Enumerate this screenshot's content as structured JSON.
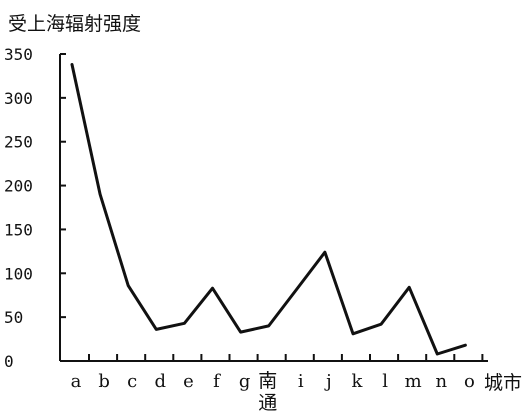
{
  "chart_data": {
    "type": "line",
    "title": "",
    "ylabel": "受上海辐射强度",
    "xlabel": "城市",
    "ylim": [
      0,
      350
    ],
    "yticks": [
      0,
      50,
      100,
      150,
      200,
      250,
      300,
      350
    ],
    "grid": false,
    "legend": "none",
    "categories": [
      "a",
      "b",
      "c",
      "d",
      "e",
      "f",
      "g",
      "南通",
      "i",
      "j",
      "k",
      "l",
      "m",
      "n",
      "o"
    ],
    "series": [
      {
        "values": [
          338,
          190,
          86,
          36,
          43,
          83,
          33,
          40,
          82,
          124,
          31,
          42,
          84,
          8,
          18
        ]
      }
    ],
    "colors": {
      "line": "#111111",
      "axis": "#111111"
    }
  }
}
